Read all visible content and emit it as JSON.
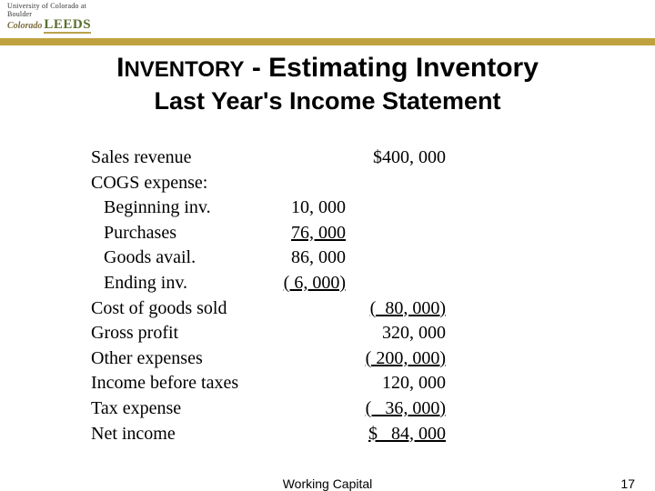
{
  "logo": {
    "top": "University of Colorado at Boulder",
    "colorado": "Colorado",
    "leeds": "LEEDS"
  },
  "title": {
    "inventory_caps": "I",
    "inventory_rest": "NVENTORY",
    "sep": " - ",
    "tail": "Estimating Inventory",
    "line2": "Last Year's Income Statement"
  },
  "rows": [
    {
      "label": "Sales revenue",
      "indent": false,
      "col1": "",
      "col2": "$400, 000"
    },
    {
      "label": "COGS expense:",
      "indent": false,
      "col1": "",
      "col2": ""
    },
    {
      "label": "Beginning inv.",
      "indent": true,
      "col1": "10, 000",
      "col2": ""
    },
    {
      "label": "Purchases",
      "indent": true,
      "col1": "76, 000",
      "col2": "",
      "col1_underline": true
    },
    {
      "label": "Goods avail.",
      "indent": true,
      "col1": "86, 000",
      "col2": ""
    },
    {
      "label": "Ending inv.",
      "indent": true,
      "col1": "( 6, 000)",
      "col2": "",
      "col1_underline": true
    },
    {
      "label": "Cost of goods sold",
      "indent": false,
      "col1": "",
      "col2": "(  80, 000)",
      "col2_underline": true
    },
    {
      "label": "Gross profit",
      "indent": false,
      "col1": "",
      "col2": "320, 000"
    },
    {
      "label": "Other expenses",
      "indent": false,
      "col1": "",
      "col2": "( 200, 000)",
      "col2_underline": true
    },
    {
      "label": "Income before taxes",
      "indent": false,
      "col1": "",
      "col2": "120, 000"
    },
    {
      "label": "Tax expense",
      "indent": false,
      "col1": "",
      "col2": "(   36, 000)",
      "col2_underline": true
    },
    {
      "label": "Net income",
      "indent": false,
      "col1": "",
      "col2": "$   84, 000",
      "col2_underline": true
    }
  ],
  "footer": {
    "center": "Working Capital",
    "page": "17"
  },
  "colors": {
    "gold_stripe": "#c0a13f",
    "background": "#ffffff",
    "text": "#000000"
  }
}
